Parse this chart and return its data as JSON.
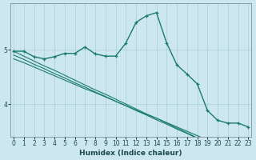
{
  "title": "",
  "xlabel": "Humidex (Indice chaleur)",
  "background_color": "#cce8ee",
  "grid_color": "#aacfd8",
  "line_color": "#1a7a6e",
  "x_values": [
    0,
    1,
    2,
    3,
    4,
    5,
    6,
    7,
    8,
    9,
    10,
    11,
    12,
    13,
    14,
    15,
    16,
    17,
    18,
    19,
    20,
    21,
    22,
    23
  ],
  "series1": [
    4.97,
    4.97,
    4.87,
    4.83,
    4.87,
    4.93,
    4.93,
    5.05,
    4.92,
    4.88,
    4.88,
    5.12,
    5.5,
    5.62,
    5.68,
    5.12,
    4.72,
    4.55,
    4.37,
    3.88,
    3.7,
    3.65,
    3.65,
    3.58
  ],
  "series2_linear": [
    4.97,
    4.88,
    4.79,
    4.7,
    4.62,
    4.53,
    4.44,
    4.35,
    4.26,
    4.18,
    4.09,
    4.0,
    3.91,
    3.82,
    3.74,
    3.65,
    3.56,
    3.47,
    3.38,
    3.29,
    3.21,
    3.12,
    3.03,
    2.94
  ],
  "series3_linear": [
    4.9,
    4.82,
    4.73,
    4.65,
    4.56,
    4.48,
    4.39,
    4.31,
    4.22,
    4.14,
    4.05,
    3.97,
    3.88,
    3.8,
    3.71,
    3.63,
    3.54,
    3.46,
    3.37,
    3.29,
    3.2,
    3.12,
    3.03,
    2.95
  ],
  "series4_linear": [
    4.83,
    4.76,
    4.68,
    4.6,
    4.52,
    4.44,
    4.36,
    4.28,
    4.21,
    4.13,
    4.05,
    3.97,
    3.89,
    3.81,
    3.74,
    3.66,
    3.58,
    3.5,
    3.42,
    3.34,
    3.27,
    3.19,
    3.11,
    3.03
  ],
  "ylim": [
    3.4,
    5.85
  ],
  "yticks": [
    4.0,
    5.0
  ],
  "xlim": [
    -0.3,
    23.3
  ],
  "xticks": [
    0,
    1,
    2,
    3,
    4,
    5,
    6,
    7,
    8,
    9,
    10,
    11,
    12,
    13,
    14,
    15,
    16,
    17,
    18,
    19,
    20,
    21,
    22,
    23
  ],
  "tick_fontsize": 5.5,
  "xlabel_fontsize": 6.5
}
